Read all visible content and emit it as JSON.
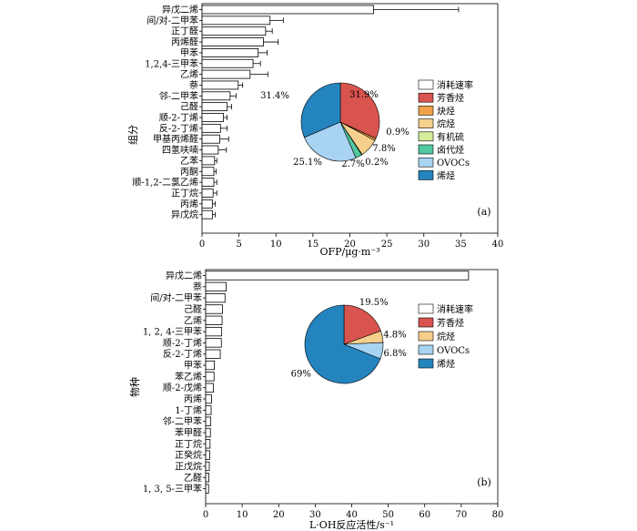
{
  "chart_data": [
    {
      "type": "bar",
      "orientation": "horizontal",
      "panel_label": "(a)",
      "ylabel": "组分",
      "xlabel": "OFP/μg·m⁻³",
      "xlim": [
        0,
        40
      ],
      "xticks": [
        "0",
        "5",
        "10",
        "15",
        "20",
        "25",
        "30",
        "35",
        "40"
      ],
      "categories": [
        "异戊二烯",
        "间/对-二甲苯",
        "正丁醛",
        "丙烯醛",
        "甲苯",
        "1,2,4-三甲苯",
        "乙烯",
        "萘",
        "邻-二甲苯",
        "己醛",
        "顺-2-丁烯",
        "反-2-丁烯",
        "甲基丙烯醛",
        "四氢呋喃",
        "乙苯",
        "丙酮",
        "顺-1,2-二氯乙烯",
        "正丁烷",
        "丙烯",
        "异戊烷"
      ],
      "values": [
        23.2,
        9.2,
        8.6,
        8.3,
        7.6,
        6.9,
        6.5,
        4.9,
        3.8,
        3.4,
        2.9,
        2.5,
        2.4,
        2.2,
        1.7,
        1.6,
        1.6,
        1.5,
        1.4,
        1.4
      ],
      "errors": [
        11.5,
        1.8,
        0.9,
        2.0,
        1.2,
        1.0,
        2.4,
        0.6,
        0.8,
        0.6,
        0.5,
        0.9,
        1.2,
        1.1,
        0.3,
        0.3,
        0.4,
        0.5,
        0.4,
        0.4
      ],
      "pie": {
        "type": "pie",
        "legend": [
          "消耗速率",
          "芳香烃",
          "炔烃",
          "烷烃",
          "有机硫",
          "卤代烃",
          "OVOCs",
          "烯烃"
        ],
        "slices": [
          {
            "name": "芳香烃",
            "value": 31.9,
            "label": "31.9%",
            "color": "#d9534f"
          },
          {
            "name": "炔烃",
            "value": 0.9,
            "label": "0.9%",
            "color": "#f0a24a"
          },
          {
            "name": "烷烃",
            "value": 7.8,
            "label": "7.8%",
            "color": "#f5cf8c"
          },
          {
            "name": "有机硫",
            "value": 0.2,
            "label": "0.2%",
            "color": "#d6ec9a"
          },
          {
            "name": "卤代烃",
            "value": 2.7,
            "label": "2.7%",
            "color": "#52c9a0"
          },
          {
            "name": "OVOCs",
            "value": 25.1,
            "label": "25.1%",
            "color": "#a9d3f3"
          },
          {
            "name": "烯烃",
            "value": 31.4,
            "label": "31.4%",
            "color": "#2384be"
          }
        ]
      }
    },
    {
      "type": "bar",
      "orientation": "horizontal",
      "panel_label": "(b)",
      "ylabel": "物种",
      "xlabel": "L·OH反应活性/s⁻¹",
      "xlim": [
        0,
        80
      ],
      "xticks": [
        "0",
        "10",
        "20",
        "30",
        "40",
        "50",
        "60",
        "70",
        "80"
      ],
      "categories": [
        "异戊二烯",
        "萘",
        "间/对-二甲苯",
        "己醛",
        "乙烯",
        "1, 2, 4-三甲苯",
        "顺-2-丁烯",
        "反-2-丁烯",
        "甲苯",
        "苯乙烯",
        "顺-2-戊烯",
        "丙烯",
        "1-丁烯",
        "邻-二甲苯",
        "苯甲醛",
        "正丁烷",
        "正癸烷",
        "正戊烷",
        "乙醛",
        "1, 3, 5-三甲苯"
      ],
      "values": [
        72.0,
        5.6,
        5.3,
        4.6,
        4.5,
        4.4,
        4.3,
        4.0,
        2.4,
        2.3,
        2.1,
        1.6,
        1.5,
        1.4,
        1.3,
        1.2,
        1.1,
        1.0,
        0.9,
        0.8
      ],
      "pie": {
        "type": "pie",
        "legend": [
          "消耗速率",
          "芳香烃",
          "烷烃",
          "OVOCs",
          "烯烃"
        ],
        "slices": [
          {
            "name": "芳香烃",
            "value": 19.5,
            "label": "19.5%",
            "color": "#d9534f"
          },
          {
            "name": "烷烃",
            "value": 4.8,
            "label": "4.8%",
            "color": "#f5cf8c"
          },
          {
            "name": "OVOCs",
            "value": 6.8,
            "label": "6.8%",
            "color": "#a9d3f3"
          },
          {
            "name": "烯烃",
            "value": 69,
            "label": "69%",
            "color": "#2384be"
          }
        ]
      }
    }
  ]
}
